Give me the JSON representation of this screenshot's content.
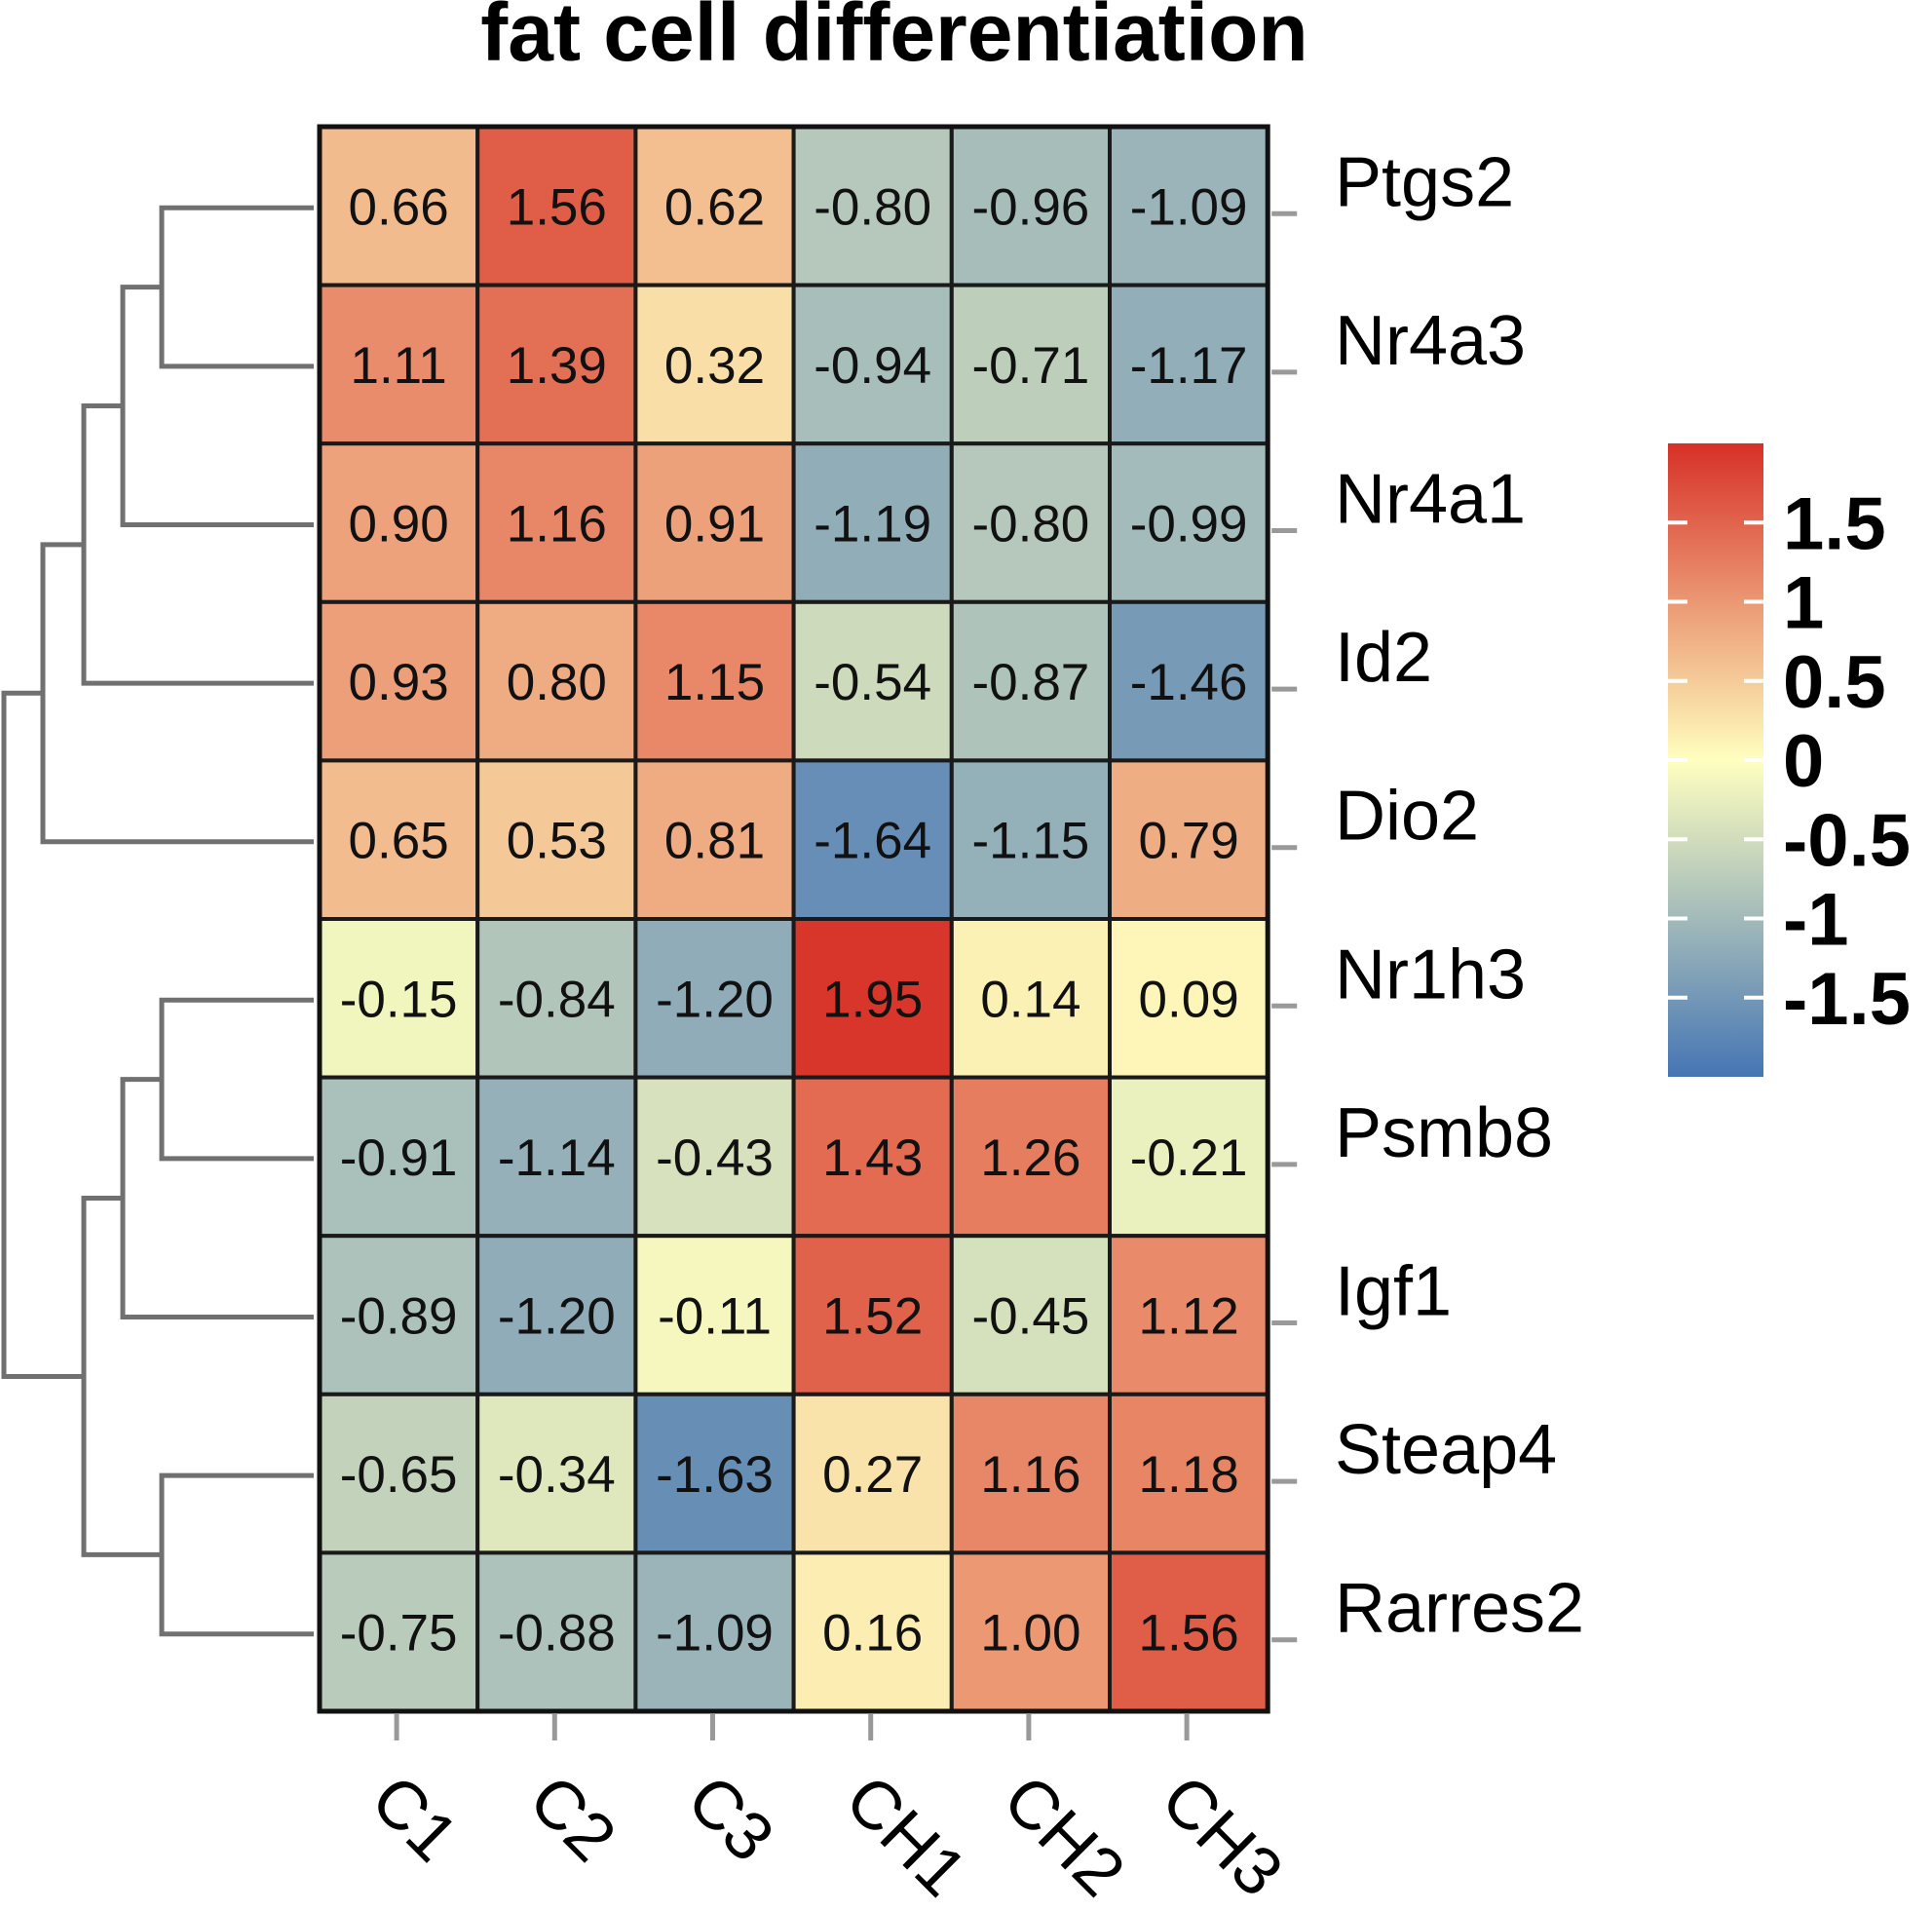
{
  "chart_data": {
    "type": "heatmap",
    "title": "fat cell differentiation",
    "columns": [
      "C1",
      "C2",
      "C3",
      "CH1",
      "CH2",
      "CH3"
    ],
    "rows": [
      "Ptgs2",
      "Nr4a3",
      "Nr4a1",
      "Id2",
      "Dio2",
      "Nr1h3",
      "Psmb8",
      "Igf1",
      "Steap4",
      "Rarres2"
    ],
    "values": [
      [
        0.66,
        1.56,
        0.62,
        -0.8,
        -0.96,
        -1.09
      ],
      [
        1.11,
        1.39,
        0.32,
        -0.94,
        -0.71,
        -1.17
      ],
      [
        0.9,
        1.16,
        0.91,
        -1.19,
        -0.8,
        -0.99
      ],
      [
        0.93,
        0.8,
        1.15,
        -0.54,
        -0.87,
        -1.46
      ],
      [
        0.65,
        0.53,
        0.81,
        -1.64,
        -1.15,
        0.79
      ],
      [
        -0.15,
        -0.84,
        -1.2,
        1.95,
        0.14,
        0.09
      ],
      [
        -0.91,
        -1.14,
        -0.43,
        1.43,
        1.26,
        -0.21
      ],
      [
        -0.89,
        -1.2,
        -0.11,
        1.52,
        -0.45,
        1.12
      ],
      [
        -0.65,
        -0.34,
        -1.63,
        0.27,
        1.16,
        1.18
      ],
      [
        -0.75,
        -0.88,
        -1.09,
        0.16,
        1.0,
        1.56
      ]
    ],
    "value_labels": [
      [
        "0.66",
        "1.56",
        "0.62",
        "-0.80",
        "-0.96",
        "-1.09"
      ],
      [
        "1.11",
        "1.39",
        "0.32",
        "-0.94",
        "-0.71",
        "-1.17"
      ],
      [
        "0.90",
        "1.16",
        "0.91",
        "-1.19",
        "-0.80",
        "-0.99"
      ],
      [
        "0.93",
        "0.80",
        "1.15",
        "-0.54",
        "-0.87",
        "-1.46"
      ],
      [
        "0.65",
        "0.53",
        "0.81",
        "-1.64",
        "-1.15",
        "0.79"
      ],
      [
        "-0.15",
        "-0.84",
        "-1.20",
        "1.95",
        "0.14",
        "0.09"
      ],
      [
        "-0.91",
        "-1.14",
        "-0.43",
        "1.43",
        "1.26",
        "-0.21"
      ],
      [
        "-0.89",
        "-1.20",
        "-0.11",
        "1.52",
        "-0.45",
        "1.12"
      ],
      [
        "-0.65",
        "-0.34",
        "-1.63",
        "0.27",
        "1.16",
        "1.18"
      ],
      [
        "-0.75",
        "-0.88",
        "-1.09",
        "0.16",
        "1.00",
        "1.56"
      ]
    ],
    "color_scale": {
      "min": -2,
      "max": 2,
      "low_color": "#4575b4",
      "mid_color": "#ffffbf",
      "high_color": "#d73027"
    },
    "legend": {
      "position": "right",
      "ticks": [
        1.5,
        1,
        0.5,
        0,
        -0.5,
        -1,
        -1.5
      ],
      "tick_labels": [
        "1.5",
        "1",
        "0.5",
        "0",
        "-0.5",
        "-1",
        "-1.5"
      ]
    },
    "row_dendrogram": true,
    "dendrogram_color": "#707070"
  }
}
